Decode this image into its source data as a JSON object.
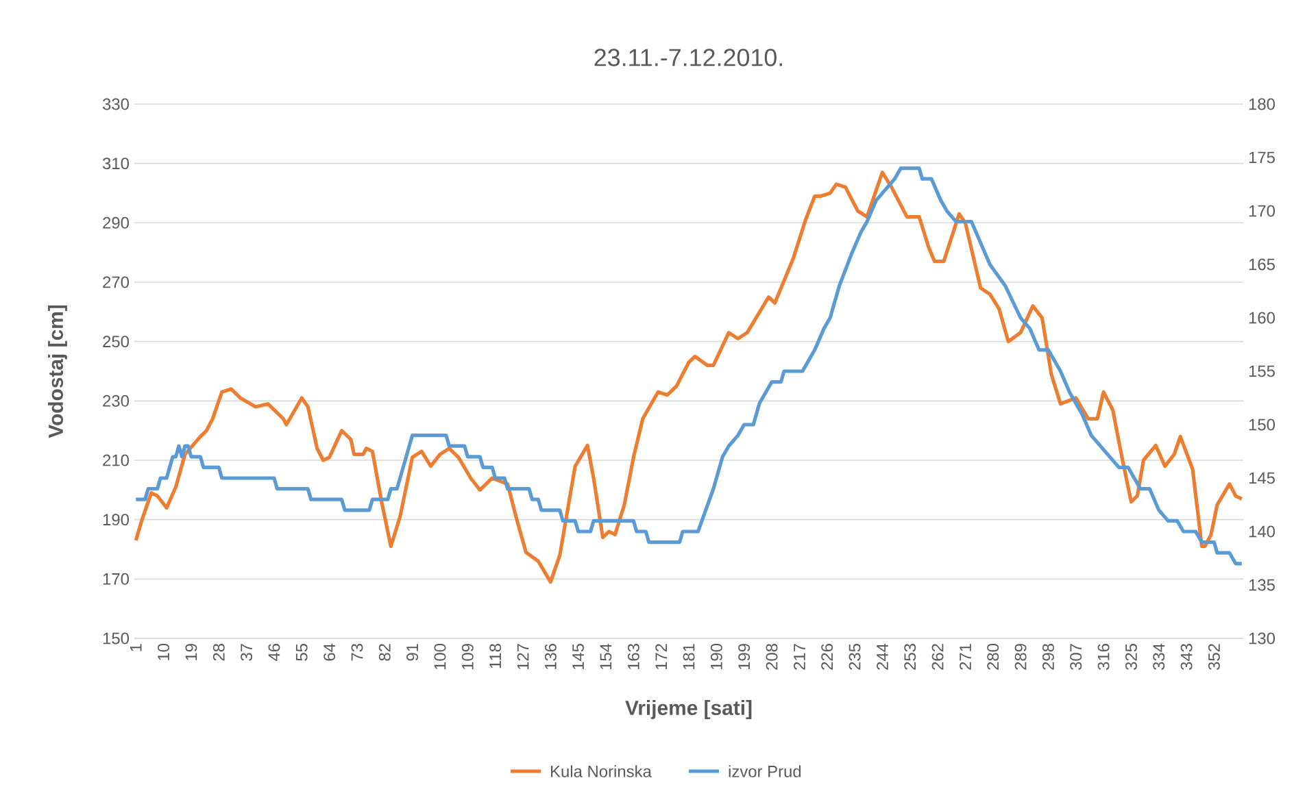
{
  "chart_data": {
    "type": "line",
    "title": "23.11.-7.12.2010.",
    "xlabel": "Vrijeme [sati]",
    "ylabel": "Vodostaj [cm]",
    "xlim": [
      0.5,
      361.5
    ],
    "xticks": [
      1,
      10,
      19,
      28,
      37,
      46,
      55,
      64,
      73,
      82,
      91,
      100,
      109,
      118,
      127,
      136,
      145,
      154,
      163,
      172,
      181,
      190,
      199,
      208,
      217,
      226,
      235,
      244,
      253,
      262,
      271,
      280,
      289,
      298,
      307,
      316,
      325,
      334,
      343,
      352
    ],
    "ylim": [
      150,
      330
    ],
    "yticks": [
      150,
      170,
      190,
      210,
      230,
      250,
      270,
      290,
      310,
      330
    ],
    "y2lim": [
      130,
      180
    ],
    "y2ticks": [
      130,
      135,
      140,
      145,
      150,
      155,
      160,
      165,
      170,
      175,
      180
    ],
    "grid": "y",
    "legend": "bottom",
    "series": [
      {
        "name": "Kula Norinska",
        "color": "#ed7d31",
        "x": [
          1,
          3,
          6,
          8,
          11,
          14,
          17,
          22,
          24,
          26,
          29,
          32,
          35,
          40,
          44,
          49,
          50,
          55,
          57,
          60,
          62,
          64,
          68,
          71,
          72,
          75,
          76,
          78,
          81,
          84,
          87,
          91,
          94,
          97,
          100,
          103,
          106,
          110,
          113,
          117,
          122,
          125,
          128,
          132,
          136,
          139,
          142,
          144,
          148,
          150,
          153,
          155,
          157,
          160,
          163,
          166,
          171,
          174,
          177,
          181,
          183,
          187,
          189,
          194,
          197,
          200,
          207,
          209,
          211,
          215,
          219,
          222,
          224,
          227,
          229,
          232,
          236,
          239,
          244,
          247,
          252,
          256,
          259,
          261,
          264,
          269,
          271,
          276,
          279,
          282,
          285,
          289,
          293,
          296,
          299,
          302,
          307,
          311,
          314,
          316,
          319,
          322,
          325,
          327,
          329,
          333,
          336,
          339,
          341,
          345,
          348,
          349,
          351,
          353,
          357,
          359,
          361
        ],
        "values": [
          183,
          190,
          199,
          198,
          194,
          201,
          212,
          218,
          220,
          224,
          233,
          234,
          231,
          228,
          229,
          224,
          222,
          231,
          228,
          214,
          210,
          211,
          220,
          217,
          212,
          212,
          214,
          213,
          196,
          181,
          191,
          211,
          213,
          208,
          212,
          214,
          211,
          204,
          200,
          204,
          202,
          190,
          179,
          176,
          169,
          178,
          196,
          208,
          215,
          204,
          184,
          186,
          185,
          195,
          211,
          224,
          233,
          232,
          235,
          243,
          245,
          242,
          242,
          253,
          251,
          253,
          265,
          263,
          268,
          278,
          291,
          299,
          299,
          300,
          303,
          302,
          294,
          292,
          307,
          302,
          292,
          292,
          282,
          277,
          277,
          293,
          290,
          268,
          266,
          261,
          250,
          253,
          262,
          258,
          239,
          229,
          231,
          224,
          224,
          233,
          227,
          211,
          196,
          198,
          210,
          215,
          208,
          212,
          218,
          207,
          181,
          181,
          185,
          195,
          202,
          198,
          197
        ]
      },
      {
        "name": "izvor Prud",
        "color": "#5b9bd5",
        "axis": "y2",
        "x": [
          1,
          4,
          5,
          8,
          9,
          11,
          13,
          14,
          15,
          16,
          17,
          18,
          19,
          22,
          23,
          28,
          29,
          46,
          47,
          57,
          58,
          68,
          69,
          77,
          78,
          83,
          84,
          86,
          91,
          102,
          103,
          108,
          109,
          113,
          114,
          117,
          118,
          121,
          122,
          129,
          130,
          132,
          133,
          139,
          140,
          144,
          145,
          149,
          150,
          163,
          164,
          167,
          168,
          178,
          179,
          184,
          189,
          192,
          194,
          197,
          199,
          202,
          204,
          206,
          208,
          211,
          212,
          218,
          220,
          222,
          225,
          227,
          230,
          234,
          237,
          239,
          242,
          245,
          248,
          250,
          256,
          257,
          260,
          263,
          265,
          268,
          273,
          276,
          279,
          284,
          289,
          292,
          295,
          298,
          302,
          305,
          309,
          312,
          315,
          318,
          321,
          324,
          326,
          328,
          331,
          334,
          337,
          340,
          342,
          346,
          348,
          352,
          353,
          357,
          359,
          361
        ],
        "values": [
          143,
          143,
          144,
          144,
          145,
          145,
          147,
          147,
          148,
          147,
          148,
          148,
          147,
          147,
          146,
          146,
          145,
          145,
          144,
          144,
          143,
          143,
          142,
          142,
          143,
          143,
          144,
          144,
          149,
          149,
          148,
          148,
          147,
          147,
          146,
          146,
          145,
          145,
          144,
          144,
          143,
          143,
          142,
          142,
          141,
          141,
          140,
          140,
          141,
          141,
          140,
          140,
          139,
          139,
          140,
          140,
          144,
          147,
          148,
          149,
          150,
          150,
          152,
          153,
          154,
          154,
          155,
          155,
          156,
          157,
          159,
          160,
          163,
          166,
          168,
          169,
          171,
          172,
          173,
          174,
          174,
          173,
          173,
          171,
          170,
          169,
          169,
          167,
          165,
          163,
          160,
          159,
          157,
          157,
          155,
          153,
          151,
          149,
          148,
          147,
          146,
          146,
          145,
          144,
          144,
          142,
          141,
          141,
          140,
          140,
          139,
          139,
          138,
          138,
          137,
          137
        ]
      }
    ]
  }
}
